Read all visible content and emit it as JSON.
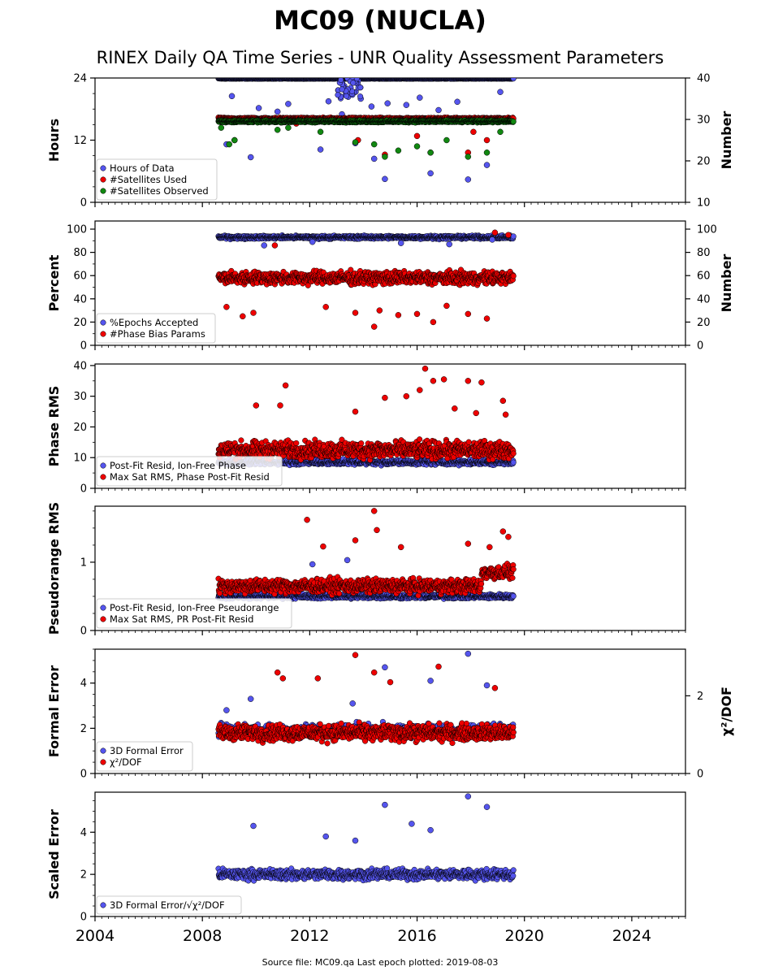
{
  "title": "MC09 (NUCLA)",
  "subtitle": "RINEX Daily QA Time Series - UNR Quality Assessment Parameters",
  "footer": "Source file: MC09.qa Last epoch plotted: 2019-08-03",
  "colors": {
    "blue": "#5555ee",
    "red": "#ee0000",
    "green": "#118811",
    "edge": "#000000"
  },
  "chart_data": [
    {
      "type": "scatter",
      "xlim": [
        2004,
        2026
      ],
      "x_ticks": [
        "2004",
        "2008",
        "2012",
        "2016",
        "2020",
        "2024"
      ],
      "ylabel": "Hours",
      "ylim": [
        0,
        24
      ],
      "y_ticks": [
        "0",
        "12",
        "24"
      ],
      "ylabel_right": "Number",
      "ylim_right": [
        10,
        40
      ],
      "y_ticks_right": [
        "10",
        "20",
        "30",
        "40"
      ],
      "grid": false,
      "legend_position": "lower-left",
      "x_range_data": [
        2008.6,
        2019.59
      ],
      "series": [
        {
          "name": "Hours of Data",
          "axis": "left",
          "color": "blue",
          "typical": 23.9,
          "outliers": [
            [
              2008.9,
              11.2
            ],
            [
              2009.1,
              20.5
            ],
            [
              2009.8,
              8.7
            ],
            [
              2010.1,
              18.2
            ],
            [
              2010.8,
              17.5
            ],
            [
              2011.2,
              19.0
            ],
            [
              2012.4,
              10.2
            ],
            [
              2012.7,
              19.5
            ],
            [
              2013.2,
              17.0
            ],
            [
              2013.5,
              21.2
            ],
            [
              2013.7,
              11.4
            ],
            [
              2013.9,
              20.0
            ],
            [
              2014.3,
              18.5
            ],
            [
              2014.4,
              8.4
            ],
            [
              2014.8,
              4.5
            ],
            [
              2014.9,
              19.1
            ],
            [
              2015.3,
              16.0
            ],
            [
              2015.6,
              18.8
            ],
            [
              2016.1,
              20.2
            ],
            [
              2016.5,
              5.6
            ],
            [
              2016.8,
              17.8
            ],
            [
              2017.5,
              19.4
            ],
            [
              2017.9,
              4.4
            ],
            [
              2018.6,
              7.2
            ],
            [
              2019.1,
              21.3
            ]
          ]
        },
        {
          "name": "#Satellites Used",
          "axis": "right",
          "color": "red",
          "typical": 30.2,
          "outliers": [
            [
              2009.2,
              25.0
            ],
            [
              2011.5,
              29.0
            ],
            [
              2013.8,
              25.0
            ],
            [
              2014.8,
              21.5
            ],
            [
              2016.0,
              26.0
            ],
            [
              2016.5,
              22.0
            ],
            [
              2017.9,
              22.0
            ],
            [
              2018.1,
              27.0
            ],
            [
              2018.6,
              25.0
            ]
          ]
        },
        {
          "name": "#Satellites Observed",
          "axis": "right",
          "color": "green",
          "typical": 29.5,
          "outliers": [
            [
              2008.7,
              28.0
            ],
            [
              2009.0,
              24.0
            ],
            [
              2009.2,
              25.0
            ],
            [
              2010.8,
              27.5
            ],
            [
              2011.2,
              28.0
            ],
            [
              2012.4,
              27.0
            ],
            [
              2013.7,
              24.5
            ],
            [
              2014.4,
              24.0
            ],
            [
              2014.8,
              21.0
            ],
            [
              2015.3,
              22.5
            ],
            [
              2016.0,
              23.5
            ],
            [
              2016.5,
              22.0
            ],
            [
              2017.1,
              25.0
            ],
            [
              2017.9,
              21.0
            ],
            [
              2018.6,
              22.0
            ],
            [
              2019.1,
              27.0
            ]
          ]
        }
      ],
      "spike_2013": {
        "x": [
          2013.0,
          2013.9
        ],
        "y": [
          20,
          24
        ]
      }
    },
    {
      "type": "scatter",
      "xlim": [
        2004,
        2026
      ],
      "x_ticks": [
        "2004",
        "2008",
        "2012",
        "2016",
        "2020",
        "2024"
      ],
      "ylabel": "Percent",
      "ylim": [
        0,
        107
      ],
      "y_ticks": [
        "0",
        "20",
        "40",
        "60",
        "80",
        "100"
      ],
      "ylabel_right": "Number",
      "ylim_right": [
        0,
        107
      ],
      "y_ticks_right": [
        "0",
        "20",
        "40",
        "60",
        "80",
        "100"
      ],
      "grid": false,
      "legend_position": "lower-left",
      "x_range_data": [
        2008.6,
        2019.59
      ],
      "series": [
        {
          "name": "%Epochs Accepted",
          "axis": "left",
          "color": "blue",
          "typical": 93,
          "spread": 2,
          "outliers": [
            [
              2010.3,
              86
            ],
            [
              2012.1,
              89
            ],
            [
              2015.4,
              88
            ],
            [
              2017.2,
              87
            ],
            [
              2018.8,
              91
            ]
          ]
        },
        {
          "name": "#Phase Bias Params",
          "axis": "right",
          "color": "red",
          "typical": 58,
          "spread": 8,
          "outliers": [
            [
              2008.9,
              33
            ],
            [
              2009.5,
              25
            ],
            [
              2009.9,
              28
            ],
            [
              2010.7,
              86
            ],
            [
              2012.6,
              33
            ],
            [
              2013.7,
              28
            ],
            [
              2014.4,
              16
            ],
            [
              2014.6,
              30
            ],
            [
              2015.3,
              26
            ],
            [
              2016.0,
              27
            ],
            [
              2016.6,
              20
            ],
            [
              2017.1,
              34
            ],
            [
              2017.9,
              27
            ],
            [
              2018.6,
              23
            ],
            [
              2018.9,
              97
            ],
            [
              2019.4,
              95
            ]
          ]
        }
      ]
    },
    {
      "type": "scatter",
      "xlim": [
        2004,
        2026
      ],
      "x_ticks": [
        "2004",
        "2008",
        "2012",
        "2016",
        "2020",
        "2024"
      ],
      "ylabel": "Phase RMS",
      "ylim": [
        0,
        40.5
      ],
      "y_ticks": [
        "0",
        "10",
        "20",
        "30",
        "40"
      ],
      "grid": false,
      "legend_position": "lower-left",
      "x_range_data": [
        2008.6,
        2019.59
      ],
      "series": [
        {
          "name": "Post-Fit Resid, Ion-Free Phase",
          "axis": "left",
          "color": "blue",
          "typical": 8.5,
          "spread": 1.2
        },
        {
          "name": "Max Sat RMS, Phase Post-Fit Resid",
          "axis": "left",
          "color": "red",
          "typical": 12.5,
          "spread": 4,
          "outliers": [
            [
              2010.0,
              27
            ],
            [
              2010.9,
              27
            ],
            [
              2011.1,
              33.5
            ],
            [
              2013.7,
              25
            ],
            [
              2014.8,
              29.5
            ],
            [
              2015.6,
              30
            ],
            [
              2016.1,
              32
            ],
            [
              2016.3,
              39
            ],
            [
              2016.6,
              35
            ],
            [
              2017.0,
              35.5
            ],
            [
              2017.4,
              26
            ],
            [
              2017.9,
              35
            ],
            [
              2018.2,
              24.5
            ],
            [
              2018.4,
              34.5
            ],
            [
              2019.2,
              28.5
            ],
            [
              2019.3,
              24
            ]
          ]
        }
      ]
    },
    {
      "type": "scatter",
      "xlim": [
        2004,
        2026
      ],
      "x_ticks": [
        "2004",
        "2008",
        "2012",
        "2016",
        "2020",
        "2024"
      ],
      "ylabel": "Pseudorange RMS",
      "ylim": [
        0,
        1.82
      ],
      "y_ticks": [
        "0",
        "1"
      ],
      "grid": false,
      "legend_position": "lower-left",
      "x_range_data": [
        2008.6,
        2019.59
      ],
      "series": [
        {
          "name": "Post-Fit Resid, Ion-Free Pseudorange",
          "axis": "left",
          "color": "blue",
          "typical": 0.5,
          "spread": 0.05,
          "outliers": [
            [
              2012.1,
              0.97
            ],
            [
              2013.4,
              1.03
            ]
          ]
        },
        {
          "name": "Max Sat RMS, PR Post-Fit Resid",
          "axis": "left",
          "color": "red",
          "typical": 0.65,
          "spread": 0.15,
          "outliers": [
            [
              2011.9,
              1.62
            ],
            [
              2012.5,
              1.23
            ],
            [
              2013.7,
              1.32
            ],
            [
              2014.4,
              1.75
            ],
            [
              2014.5,
              1.47
            ],
            [
              2015.4,
              1.22
            ],
            [
              2017.9,
              1.27
            ],
            [
              2019.2,
              1.45
            ],
            [
              2019.4,
              1.37
            ],
            [
              2018.7,
              1.22
            ]
          ]
        }
      ]
    },
    {
      "type": "scatter",
      "xlim": [
        2004,
        2026
      ],
      "x_ticks": [
        "2004",
        "2008",
        "2012",
        "2016",
        "2020",
        "2024"
      ],
      "ylabel": "Formal Error",
      "ylim": [
        0,
        5.5
      ],
      "y_ticks": [
        "0",
        "2",
        "4"
      ],
      "ylabel_right": "χ²/DOF",
      "ylim_right": [
        0,
        3.2
      ],
      "y_ticks_right": [
        "0",
        "2"
      ],
      "grid": false,
      "legend_position": "lower-left",
      "x_range_data": [
        2008.6,
        2019.59
      ],
      "series": [
        {
          "name": "3D Formal Error",
          "axis": "left",
          "color": "blue",
          "typical": 1.9,
          "spread": 0.4,
          "outliers": [
            [
              2008.9,
              2.8
            ],
            [
              2009.8,
              3.3
            ],
            [
              2013.6,
              3.1
            ],
            [
              2014.8,
              4.7
            ],
            [
              2016.5,
              4.1
            ],
            [
              2017.9,
              5.3
            ],
            [
              2018.6,
              3.9
            ]
          ]
        },
        {
          "name": "χ²/DOF",
          "axis": "right",
          "color": "red",
          "typical": 1.05,
          "spread": 0.3,
          "outliers": [
            [
              2010.8,
              2.6
            ],
            [
              2011.0,
              2.45
            ],
            [
              2012.3,
              2.45
            ],
            [
              2013.7,
              3.05
            ],
            [
              2014.4,
              2.6
            ],
            [
              2015.0,
              2.35
            ],
            [
              2016.8,
              2.75
            ],
            [
              2018.9,
              2.2
            ]
          ]
        }
      ]
    },
    {
      "type": "scatter",
      "xlim": [
        2004,
        2026
      ],
      "x_ticks": [
        "2004",
        "2008",
        "2012",
        "2016",
        "2020",
        "2024"
      ],
      "ylabel": "Scaled Error",
      "ylim": [
        0,
        5.9
      ],
      "y_ticks": [
        "0",
        "2",
        "4"
      ],
      "grid": false,
      "legend_position": "lower-left",
      "x_range_data": [
        2008.6,
        2019.59
      ],
      "series": [
        {
          "name": "3D Formal Error/√χ²/DOF",
          "axis": "left",
          "color": "blue",
          "typical": 2.0,
          "spread": 0.35,
          "outliers": [
            [
              2009.9,
              4.3
            ],
            [
              2012.6,
              3.8
            ],
            [
              2013.7,
              3.6
            ],
            [
              2014.8,
              5.3
            ],
            [
              2015.8,
              4.4
            ],
            [
              2016.5,
              4.1
            ],
            [
              2017.9,
              5.7
            ],
            [
              2018.6,
              5.2
            ]
          ]
        }
      ]
    }
  ]
}
